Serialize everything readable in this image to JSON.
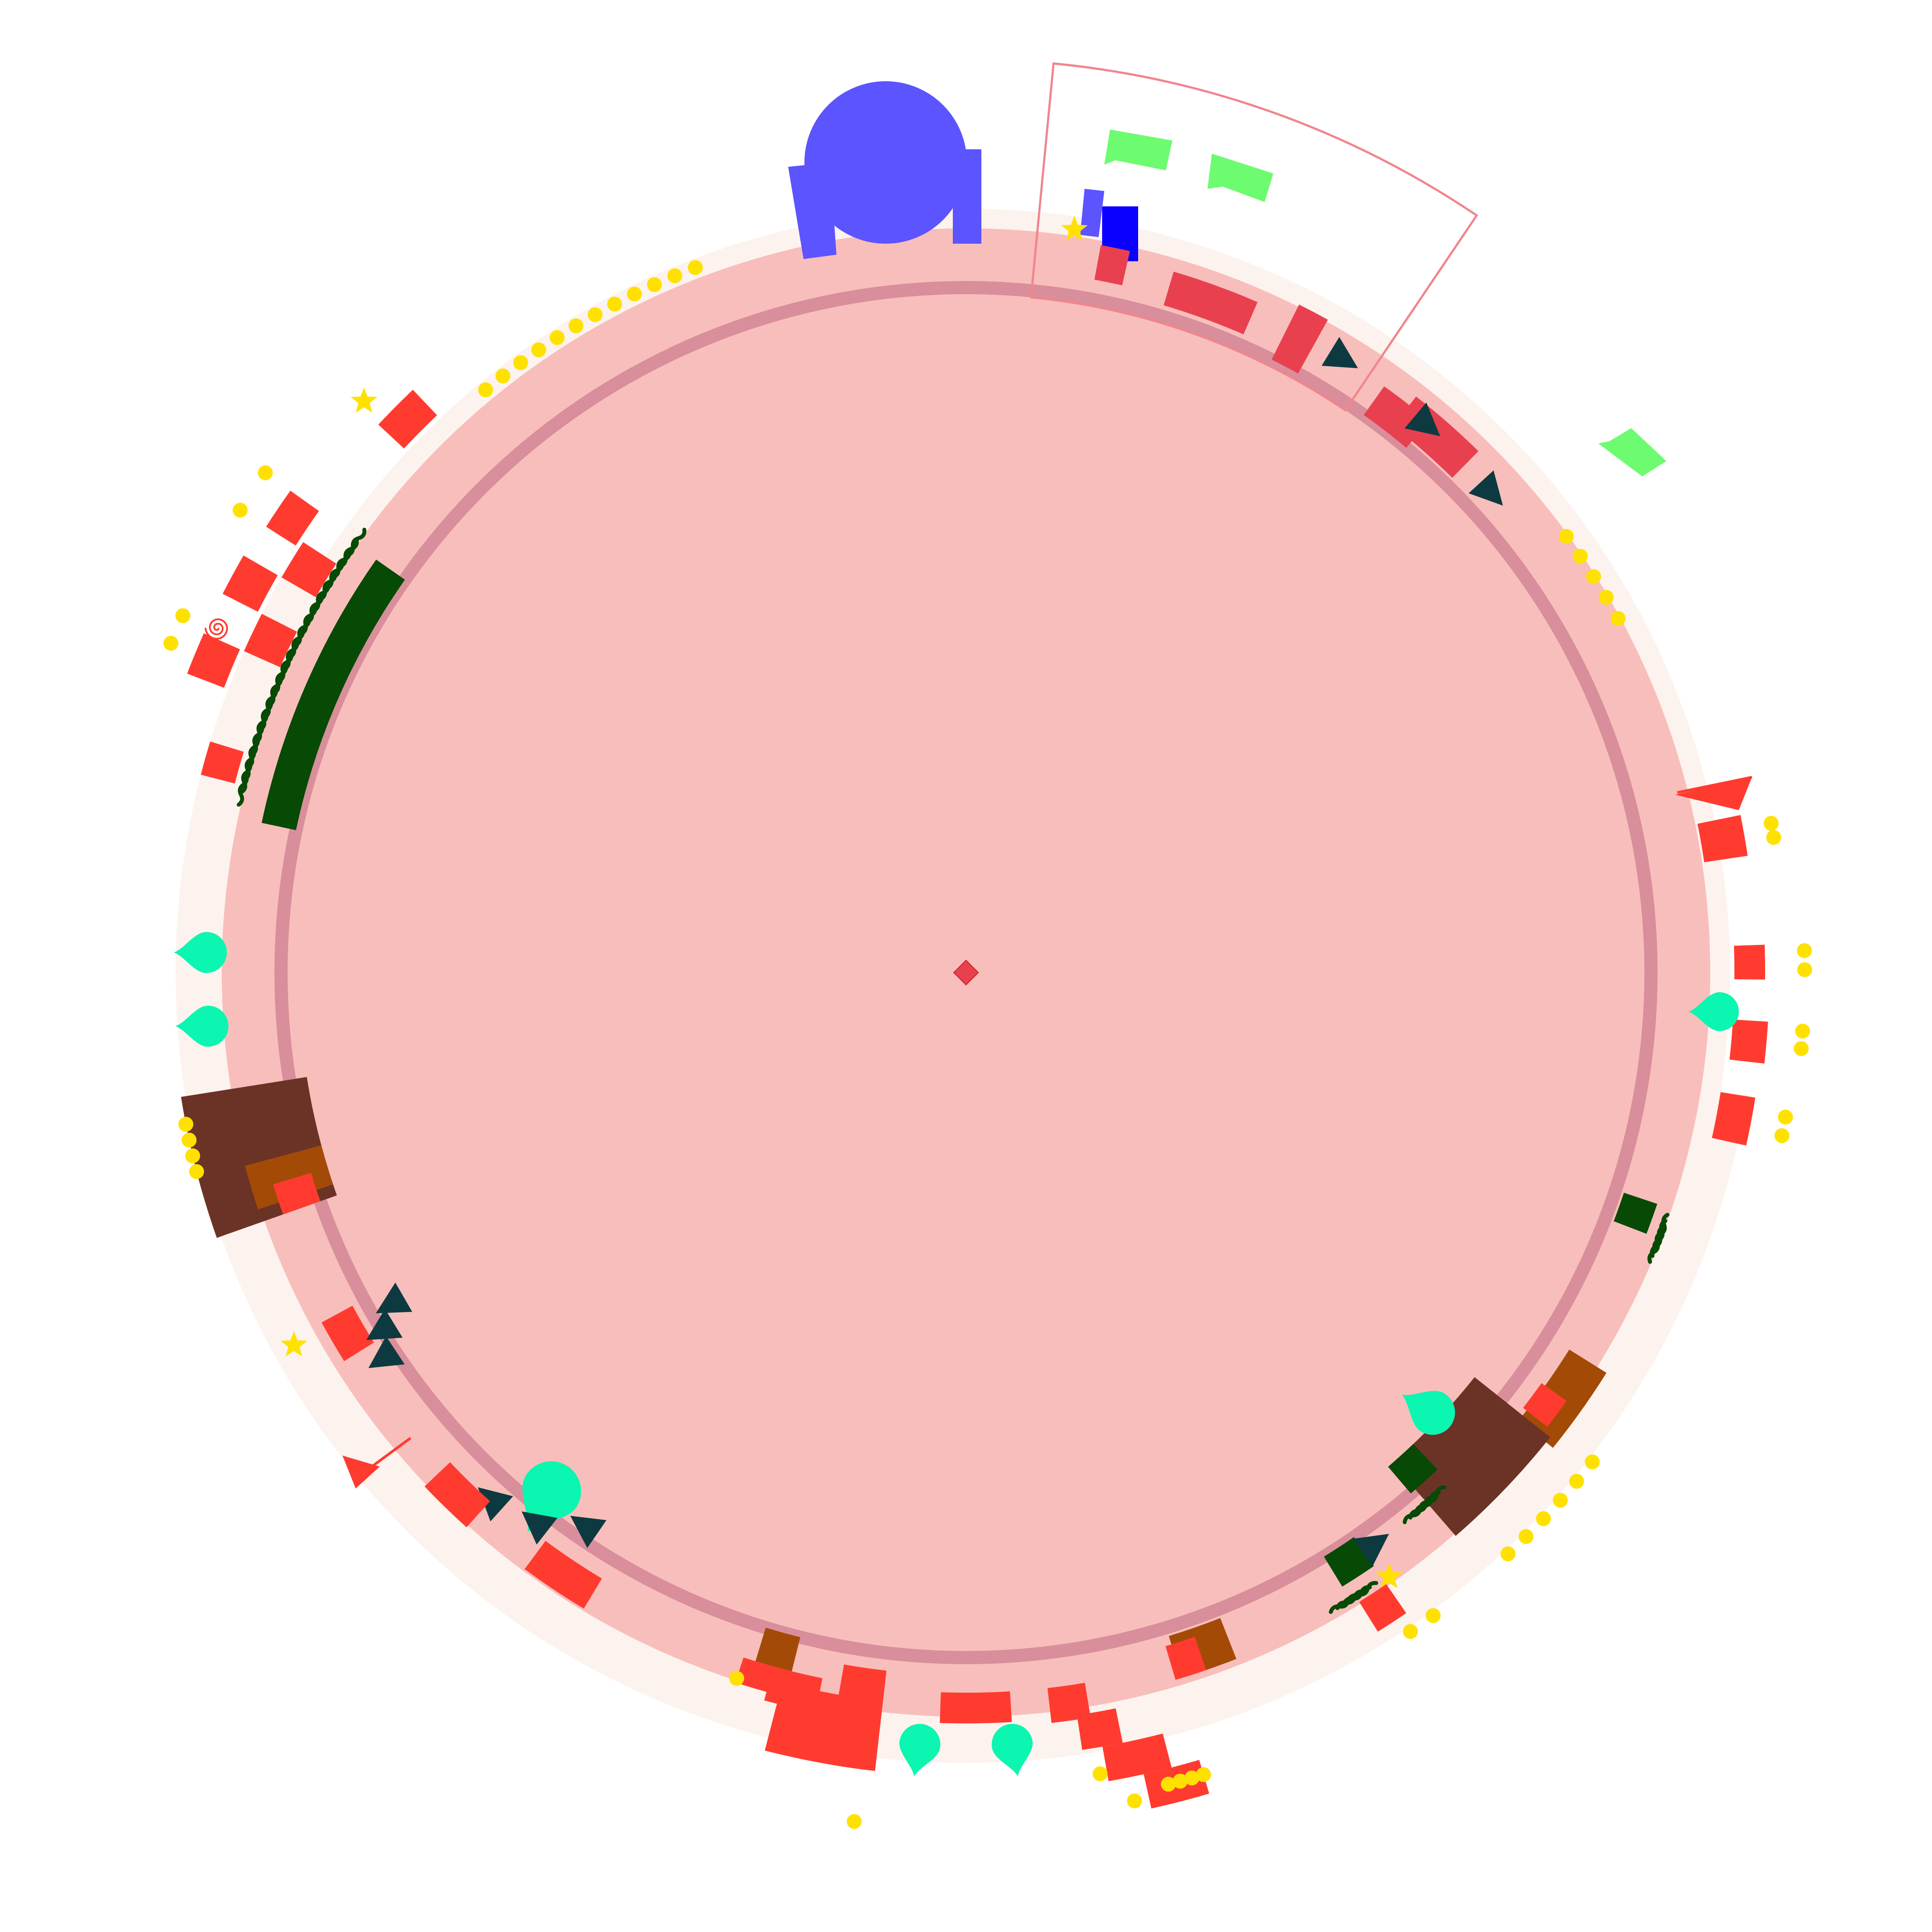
{
  "diagram": {
    "kind": "circular genome-style map",
    "colors": {
      "background": "#ffffff",
      "disk": "#f8bebb",
      "ring_line": "#d98e9b",
      "outer_halo": "#fdf3ee",
      "feature_red": "#ff3b30",
      "feature_crimson": "#e8404f",
      "feature_green": "#6dfb70",
      "feature_dark_green": "#064a05",
      "feature_brown": "#a34b06",
      "feature_dark_brown": "#6b3326",
      "feature_teal": "#0bf6b0",
      "feature_navy": "#0d3a40",
      "feature_blue": "#0a00ff",
      "feature_periwinkle": "#5b54ff",
      "marker_yellow": "#ffe100",
      "highlight_outline": "#f1858e",
      "center_marker": "#e8404f"
    },
    "icons": [
      "center-diamond-icon",
      "lock-glyph-icon",
      "spiral-icon",
      "star-icon",
      "wavy-hair-icon",
      "teardrop-icon",
      "triangle-marker-icon",
      "dot-marker-icon"
    ]
  }
}
